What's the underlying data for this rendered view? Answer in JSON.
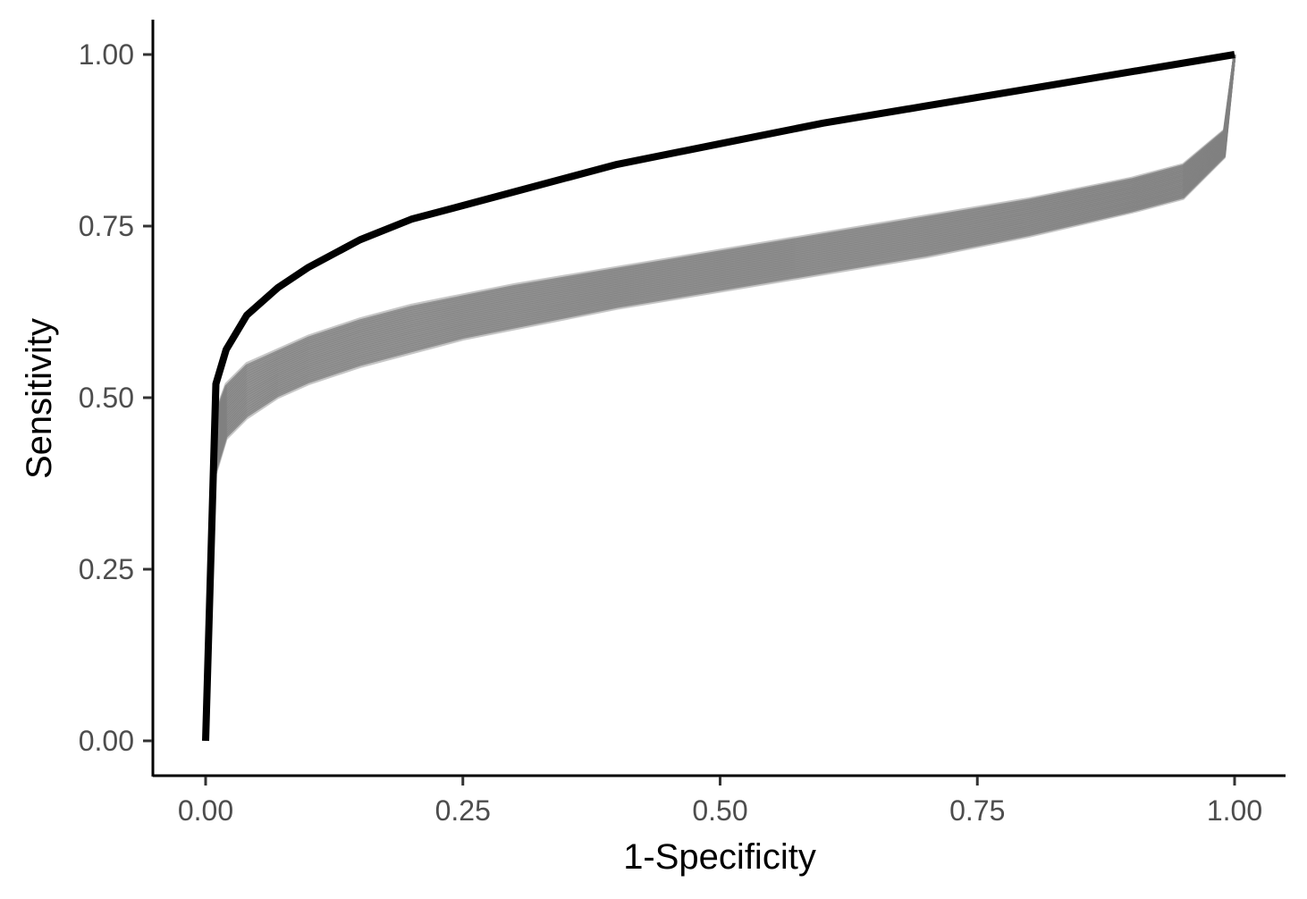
{
  "chart_data": {
    "type": "line",
    "title": "",
    "xlabel": "1-Specificity",
    "ylabel": "Sensitivity",
    "xlim": [
      0,
      1
    ],
    "ylim": [
      0,
      1
    ],
    "x_ticks": [
      "0.00",
      "0.25",
      "0.50",
      "0.75",
      "1.00"
    ],
    "y_ticks": [
      "0.00",
      "0.25",
      "0.50",
      "0.75",
      "1.00"
    ],
    "grid": false,
    "legend": "none",
    "series": [
      {
        "role": "reference curve",
        "color": "#000000",
        "x": [
          0.0,
          0.01,
          0.02,
          0.04,
          0.07,
          0.1,
          0.15,
          0.2,
          0.25,
          0.3,
          0.4,
          0.5,
          0.6,
          0.7,
          0.8,
          0.9,
          1.0
        ],
        "y": [
          0.0,
          0.52,
          0.57,
          0.62,
          0.66,
          0.69,
          0.73,
          0.76,
          0.78,
          0.8,
          0.84,
          0.87,
          0.9,
          0.925,
          0.95,
          0.975,
          1.0
        ]
      },
      {
        "role": "simulated curves band",
        "color": "#808080",
        "x": [
          0.01,
          0.02,
          0.04,
          0.07,
          0.1,
          0.15,
          0.2,
          0.25,
          0.3,
          0.4,
          0.5,
          0.6,
          0.7,
          0.8,
          0.9,
          0.95,
          0.99,
          1.0
        ],
        "y_upper": [
          0.48,
          0.52,
          0.55,
          0.57,
          0.59,
          0.615,
          0.635,
          0.65,
          0.665,
          0.69,
          0.715,
          0.74,
          0.765,
          0.79,
          0.82,
          0.84,
          0.89,
          1.0
        ],
        "y_lower": [
          0.39,
          0.44,
          0.47,
          0.5,
          0.52,
          0.545,
          0.565,
          0.585,
          0.6,
          0.63,
          0.655,
          0.68,
          0.705,
          0.735,
          0.77,
          0.79,
          0.85,
          1.0
        ]
      }
    ]
  }
}
